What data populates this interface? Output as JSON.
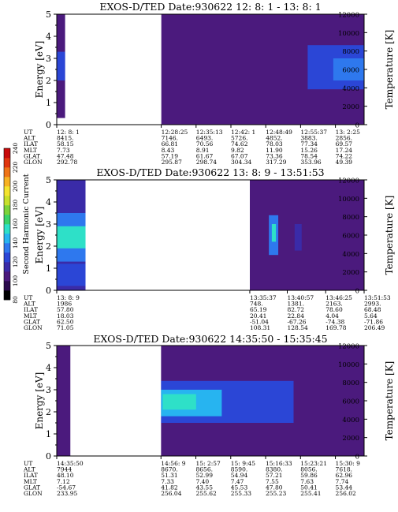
{
  "chart_data": [
    {
      "type": "heatmap",
      "title": "EXOS-D/TED   Date:930622  12: 8: 1 - 13: 8: 1",
      "ylabel": "Energy [eV]",
      "ylabel_right": "Temperature [K]",
      "ylim": [
        0,
        5
      ],
      "ylim_right": [
        0,
        12000
      ],
      "yticks": [
        "0",
        "1",
        "2",
        "3",
        "4",
        "5"
      ],
      "yticks_right": [
        "0",
        "2000",
        "4000",
        "6000",
        "8000",
        "10000",
        "12000"
      ],
      "time_range": [
        "12:08:01",
        "13:08:01"
      ],
      "data_gaps": [
        [
          "12:09:40",
          "12:28:25"
        ]
      ],
      "bands": [
        {
          "t0": "12:08:01",
          "t1": "12:09:40",
          "e0": 0.3,
          "e1": 5.0,
          "level": 108
        },
        {
          "t0": "12:08:01",
          "t1": "12:09:40",
          "e0": 2.0,
          "e1": 3.3,
          "level": 128
        },
        {
          "t0": "12:28:25",
          "t1": "13:08:01",
          "e0": 0.0,
          "e1": 5.0,
          "level": 104
        },
        {
          "t0": "12:57:00",
          "t1": "13:08:01",
          "e0": 1.6,
          "e1": 3.6,
          "level": 120
        },
        {
          "t0": "13:02:00",
          "t1": "13:08:01",
          "e0": 2.0,
          "e1": 3.0,
          "level": 130
        }
      ],
      "table": {
        "labels": [
          "UT",
          "ALT",
          "ILAT",
          "MLT",
          "GLAT",
          "GLON"
        ],
        "columns": [
          [
            "12: 8: 1",
            "8415.",
            "58.15",
            "7.73",
            "47.48",
            "292.78"
          ],
          [
            "12:28:25",
            "7146.",
            "66.81",
            "8.43",
            "57.19",
            "295.87"
          ],
          [
            "12:35:13",
            "6493.",
            "70.56",
            "8.91",
            "61.67",
            "298.74"
          ],
          [
            "12:42: 1",
            "5726.",
            "74.62",
            "9.82",
            "67.07",
            "304.34"
          ],
          [
            "12:48:49",
            "4852.",
            "78.03",
            "11.90",
            "73.36",
            "317.29"
          ],
          [
            "12:55:37",
            "3883.",
            "77.34",
            "15.26",
            "78.54",
            "353.96"
          ],
          [
            "13: 2:25",
            "2856.",
            "69.57",
            "17.24",
            "74.22",
            "49.39"
          ]
        ]
      }
    },
    {
      "type": "heatmap",
      "title": "EXOS-D/TED   Date:930622  13: 8: 9 - 13:51:53",
      "ylabel": "Energy [eV]",
      "ylabel_right": "Temperature [K]",
      "ylim": [
        0,
        5
      ],
      "ylim_right": [
        0,
        12000
      ],
      "yticks": [
        "0",
        "1",
        "2",
        "3",
        "4",
        "5"
      ],
      "yticks_right": [
        "0",
        "2000",
        "4000",
        "6000",
        "8000",
        "10000",
        "12000"
      ],
      "time_range": [
        "13:08:09",
        "13:51:53"
      ],
      "data_gaps": [
        [
          "13:12:15",
          "13:35:37"
        ]
      ],
      "bands": [
        {
          "t0": "13:08:09",
          "t1": "13:12:15",
          "e0": 0.0,
          "e1": 5.0,
          "level": 118
        },
        {
          "t0": "13:08:09",
          "t1": "13:12:15",
          "e0": 1.3,
          "e1": 3.5,
          "level": 136
        },
        {
          "t0": "13:08:09",
          "t1": "13:12:15",
          "e0": 1.9,
          "e1": 2.9,
          "level": 150
        },
        {
          "t0": "13:08:09",
          "t1": "13:12:15",
          "e0": 0.2,
          "e1": 1.2,
          "level": 128
        },
        {
          "t0": "13:35:37",
          "t1": "13:51:53",
          "e0": 0.0,
          "e1": 5.0,
          "level": 102
        },
        {
          "t0": "13:38:20",
          "t1": "13:39:40",
          "e0": 1.6,
          "e1": 3.4,
          "level": 130
        },
        {
          "t0": "13:38:45",
          "t1": "13:39:20",
          "e0": 2.2,
          "e1": 3.0,
          "level": 150
        },
        {
          "t0": "13:42:00",
          "t1": "13:43:00",
          "e0": 1.8,
          "e1": 3.0,
          "level": 112
        }
      ],
      "table": {
        "labels": [
          "UT",
          "ALT",
          "ILAT",
          "MLT",
          "GLAT",
          "GLON"
        ],
        "columns": [
          [
            "13: 8: 9",
            "1986",
            "57.80",
            "18.03",
            "62.50",
            "71.05"
          ],
          [
            "13:35:37",
            "748.",
            "65.19",
            "20.41",
            "-51.04",
            "108.31"
          ],
          [
            "13:40:57",
            "1381.",
            "82.72",
            "22.84",
            "-67.26",
            "128.54"
          ],
          [
            "13:46:25",
            "2163.",
            "78.60",
            "4.04",
            "-74.38",
            "169.78"
          ],
          [
            "13:51:53",
            "2993.",
            "68.48",
            "5.64",
            "-71.86",
            "206.49"
          ]
        ]
      }
    },
    {
      "type": "heatmap",
      "title": "EXOS-D/TED   Date:930622  14:35:50 - 15:35:45",
      "ylabel": "Energy [eV]",
      "ylabel_right": "Temperature [K]",
      "ylim": [
        0,
        5
      ],
      "ylim_right": [
        0,
        12000
      ],
      "yticks": [
        "0",
        "1",
        "2",
        "3",
        "4",
        "5"
      ],
      "yticks_right": [
        "0",
        "2000",
        "4000",
        "6000",
        "8000",
        "10000",
        "12000"
      ],
      "time_range": [
        "14:35:50",
        "15:35:45"
      ],
      "data_gaps": [
        [
          "14:38:30",
          "14:56:09"
        ]
      ],
      "bands": [
        {
          "t0": "14:35:50",
          "t1": "14:38:30",
          "e0": 0.0,
          "e1": 5.0,
          "level": 102
        },
        {
          "t0": "14:56:09",
          "t1": "15:35:45",
          "e0": 0.0,
          "e1": 5.0,
          "level": 102
        },
        {
          "t0": "14:56:09",
          "t1": "15:22:00",
          "e0": 1.5,
          "e1": 3.4,
          "level": 124
        },
        {
          "t0": "14:56:09",
          "t1": "15:08:00",
          "e0": 1.8,
          "e1": 3.0,
          "level": 140
        },
        {
          "t0": "14:56:30",
          "t1": "15:03:00",
          "e0": 2.1,
          "e1": 2.8,
          "level": 152
        }
      ],
      "table": {
        "labels": [
          "UT",
          "ALT",
          "ILAT",
          "MLT",
          "GLAT",
          "GLON"
        ],
        "columns": [
          [
            "14:35:50",
            "7944",
            "48.10",
            "7.12",
            "-54.67",
            "233.95"
          ],
          [
            "14:56: 9",
            "8670.",
            "51.31",
            "7.33",
            "41.82",
            "256.04"
          ],
          [
            "15: 2:57",
            "8656.",
            "52.99",
            "7.40",
            "43.55",
            "255.62"
          ],
          [
            "15: 9:45",
            "8590.",
            "54.94",
            "7.47",
            "45.53",
            "255.33"
          ],
          [
            "15:16:33",
            "8380.",
            "57.21",
            "7.55",
            "47.80",
            "255.23"
          ],
          [
            "15:23:21",
            "8056.",
            "59.86",
            "7.63",
            "50.41",
            "255.41"
          ],
          [
            "15:30: 9",
            "7618.",
            "62.96",
            "7.74",
            "53.44",
            "256.02"
          ]
        ]
      }
    }
  ],
  "colorbar": {
    "label": "Second Harmonic Current",
    "ticks": [
      "80",
      "100",
      "120",
      "140",
      "160",
      "180",
      "200",
      "220",
      "240"
    ],
    "range": [
      80,
      240
    ],
    "colors": [
      "#000000",
      "#2b0a4d",
      "#4b1a7d",
      "#3a2ba8",
      "#2b46d6",
      "#2e78ee",
      "#27b4f0",
      "#2ee0c8",
      "#3ad26a",
      "#7cd33a",
      "#c8e02c",
      "#f4e430",
      "#f7b224",
      "#ef7418",
      "#e0360f",
      "#c80a0a"
    ]
  }
}
